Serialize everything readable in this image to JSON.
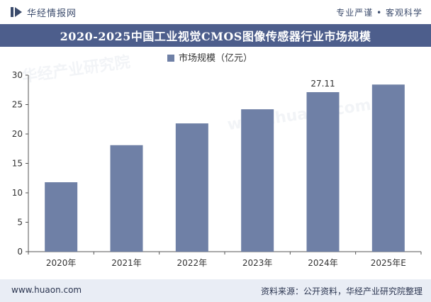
{
  "header": {
    "brand": "华经情报网",
    "tagline": "专业严谨 • 客观科学"
  },
  "footer": {
    "url": "www.huaon.com",
    "source": "资料来源：公开资料，华经产业研究院整理"
  },
  "watermark": {
    "name": "华经产业研究院",
    "url": "www.huaon.com"
  },
  "chart_data": {
    "type": "bar",
    "title": "2020-2025中国工业视觉CMOS图像传感器行业市场规模",
    "categories": [
      "2020年",
      "2021年",
      "2022年",
      "2023年",
      "2024年",
      "2025年E"
    ],
    "series": [
      {
        "name": "市场规模（亿元）",
        "values": [
          11.8,
          18.1,
          21.8,
          24.2,
          27.11,
          28.4
        ]
      }
    ],
    "data_labels": {
      "4": "27.11"
    },
    "ylim": [
      0,
      30
    ],
    "yticks": [
      0,
      5,
      10,
      15,
      20,
      25,
      30
    ],
    "xlabel": "",
    "ylabel": "",
    "legend_position": "top-center",
    "grid": false,
    "colors": {
      "bar": "#6f80a6",
      "axis": "#555555",
      "text": "#333333"
    }
  }
}
